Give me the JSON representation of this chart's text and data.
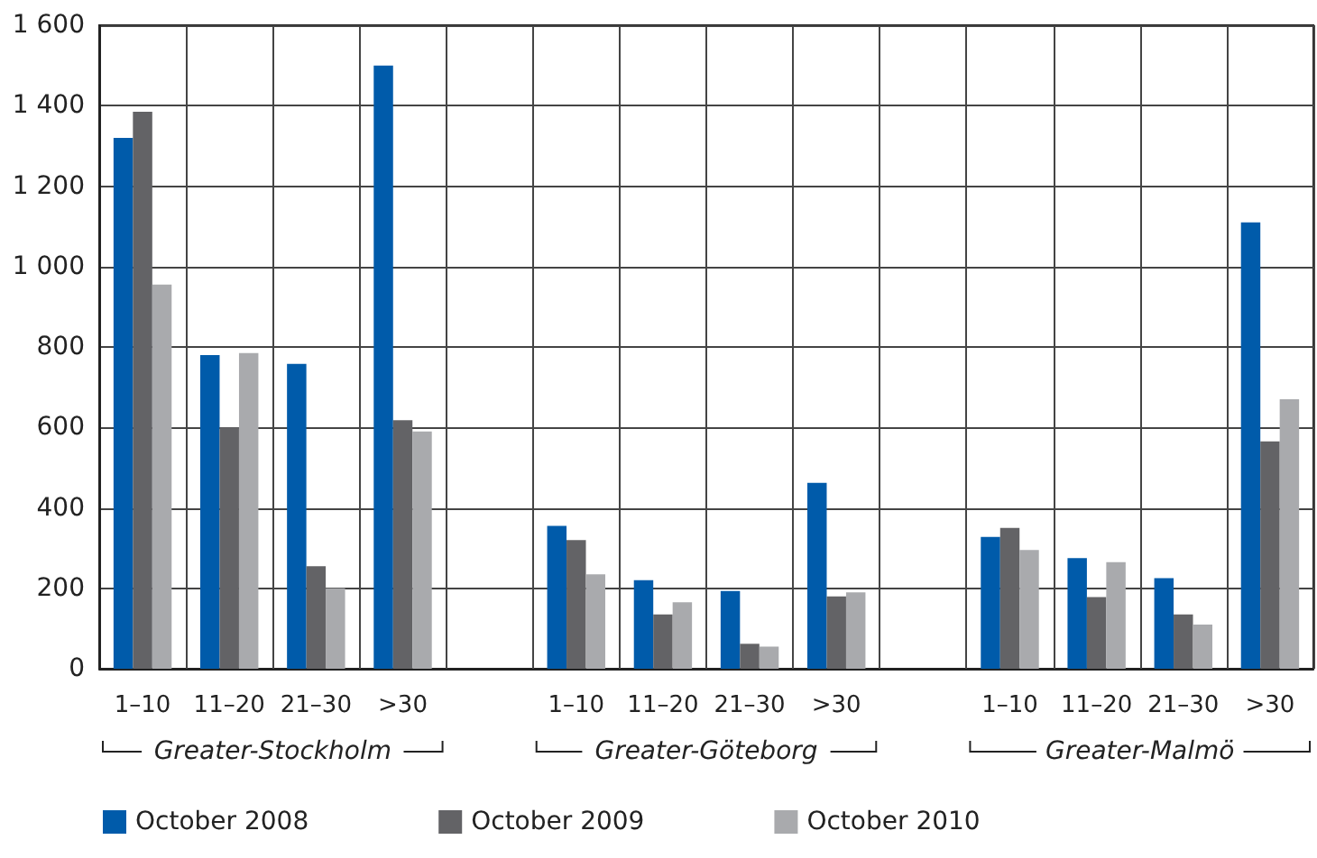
{
  "chart_data": {
    "type": "bar",
    "categories": [
      "1–10",
      "11–20",
      "21–30",
      ">30",
      null,
      "1–10",
      "11–20",
      "21–30",
      ">30",
      null,
      "1–10",
      "11–20",
      "21–30",
      ">30"
    ],
    "series": [
      {
        "name": "October 2008",
        "color": "#005baa",
        "values": [
          1320,
          780,
          758,
          1500,
          null,
          355,
          220,
          193,
          462,
          null,
          328,
          275,
          225,
          1110
        ]
      },
      {
        "name": "October 2009",
        "color": "#636366",
        "values": [
          1385,
          600,
          255,
          618,
          null,
          320,
          135,
          62,
          180,
          null,
          350,
          178,
          135,
          565
        ]
      },
      {
        "name": "October 2010",
        "color": "#a9aaad",
        "values": [
          955,
          785,
          200,
          590,
          null,
          235,
          165,
          55,
          190,
          null,
          295,
          265,
          110,
          670
        ]
      }
    ],
    "annotations": [
      "Greater-Stockholm",
      "Greater-Göteborg",
      "Greater-Malmö"
    ],
    "ylim": [
      0,
      1600
    ],
    "yticks": [
      0,
      200,
      400,
      600,
      800,
      {
        "value": 1000,
        "label": "1 000"
      },
      {
        "value": 1200,
        "label": "1 200"
      },
      {
        "value": 1400,
        "label": "1 400"
      },
      {
        "value": 1600,
        "label": "1 600"
      }
    ],
    "grid": true,
    "legend": "bottom left"
  }
}
